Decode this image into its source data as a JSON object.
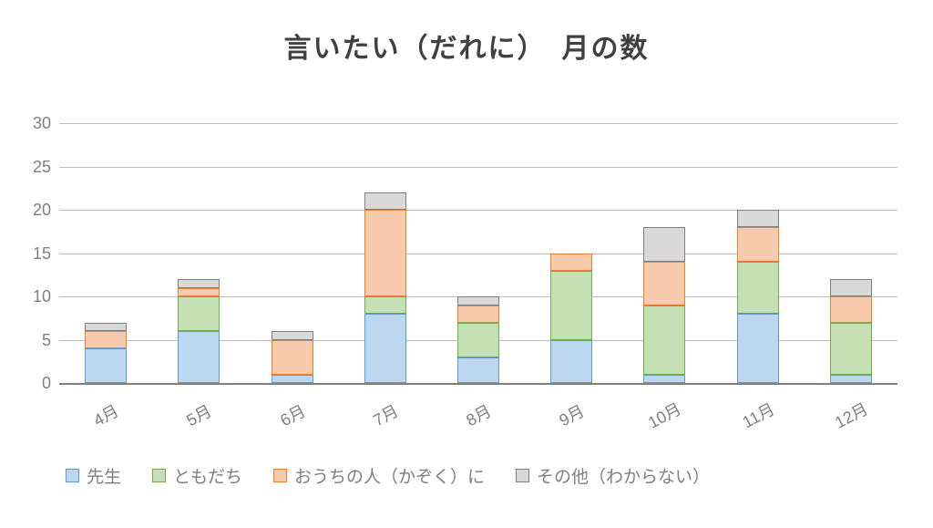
{
  "chart_data": {
    "type": "bar",
    "stacked": true,
    "title": "言いたい（だれに）　月の数",
    "categories": [
      "4月",
      "5月",
      "6月",
      "7月",
      "8月",
      "9月",
      "10月",
      "11月",
      "12月"
    ],
    "series": [
      {
        "name": "先生",
        "fill": "#BDD7EE",
        "border": "#5B9BD5",
        "values": [
          4,
          6,
          1,
          8,
          3,
          5,
          1,
          8,
          1
        ]
      },
      {
        "name": "ともだち",
        "fill": "#C5E0B4",
        "border": "#70AD47",
        "values": [
          0,
          4,
          0,
          2,
          4,
          8,
          8,
          6,
          6
        ]
      },
      {
        "name": "おうちの人（かぞく）に",
        "fill": "#F8CBAD",
        "border": "#ED7D31",
        "values": [
          2,
          1,
          4,
          10,
          2,
          2,
          5,
          4,
          3
        ]
      },
      {
        "name": "その他（わからない）",
        "fill": "#D9D9D9",
        "border": "#7F7F7F",
        "values": [
          1,
          1,
          1,
          2,
          1,
          0,
          4,
          2,
          2
        ]
      }
    ],
    "yticks": [
      0,
      5,
      10,
      15,
      20,
      25,
      30
    ],
    "ymax": 30,
    "xlabel": "",
    "ylabel": "",
    "grid": true,
    "legend_position": "bottom",
    "colors": {
      "gridline": "#bfbfbf",
      "axis_line": "#808080",
      "label_text": "#7f7f7f",
      "title_text": "#404040",
      "background": "#ffffff"
    }
  }
}
